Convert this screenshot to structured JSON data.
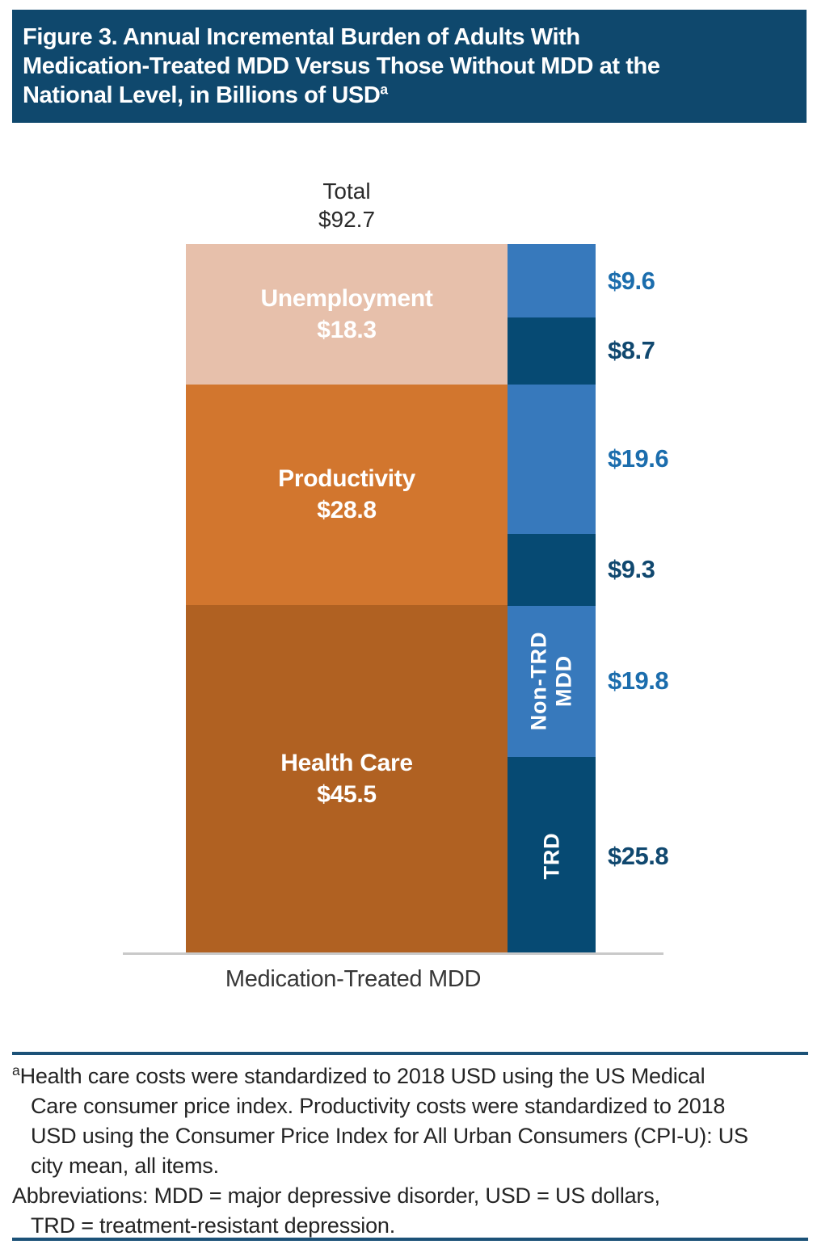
{
  "header": {
    "bg_color": "#0f486d",
    "title_lines": [
      "Figure 3. Annual Incremental Burden of Adults With",
      "Medication-Treated MDD Versus Those Without MDD at the",
      "National Level, in Billions of USD"
    ],
    "title_superscript": "a"
  },
  "chart_data": {
    "type": "bar",
    "stacked": true,
    "orientation": "vertical",
    "unit": "billions of USD",
    "categories": [
      "Medication-Treated MDD"
    ],
    "x_category": "Medication-Treated MDD",
    "total_label": "Total",
    "total_value": 92.7,
    "total_value_label": "$92.7",
    "axis_line_color": "#c9c9c9",
    "main_segments": [
      {
        "name": "Unemployment",
        "label": "Unemployment",
        "value": 18.3,
        "value_label": "$18.3",
        "color": "#e7c0ab"
      },
      {
        "name": "Productivity",
        "label": "Productivity",
        "value": 28.8,
        "value_label": "$28.8",
        "color": "#d2762e"
      },
      {
        "name": "Health Care",
        "label": "Health Care",
        "value": 45.5,
        "value_label": "$45.5",
        "color": "#b06122"
      }
    ],
    "split_segments": [
      {
        "group": "Unemployment",
        "category": "Non-TRD MDD",
        "value": 9.6,
        "value_label": "$9.6",
        "color": "#3779bc",
        "label_color": "#1b6dad",
        "rotated_label_lines": []
      },
      {
        "group": "Unemployment",
        "category": "TRD",
        "value": 8.7,
        "value_label": "$8.7",
        "color": "#064a73",
        "label_color": "#10486f",
        "rotated_label_lines": []
      },
      {
        "group": "Productivity",
        "category": "Non-TRD MDD",
        "value": 19.6,
        "value_label": "$19.6",
        "color": "#3779bc",
        "label_color": "#1b6dad",
        "rotated_label_lines": []
      },
      {
        "group": "Productivity",
        "category": "TRD",
        "value": 9.3,
        "value_label": "$9.3",
        "color": "#064a73",
        "label_color": "#10486f",
        "rotated_label_lines": []
      },
      {
        "group": "Health Care",
        "category": "Non-TRD MDD",
        "value": 19.8,
        "value_label": "$19.8",
        "color": "#3779bc",
        "label_color": "#1b6dad",
        "rotated_label_lines": [
          "Non-TRD",
          "MDD"
        ]
      },
      {
        "group": "Health Care",
        "category": "TRD",
        "value": 25.8,
        "value_label": "$25.8",
        "color": "#064a73",
        "label_color": "#10486f",
        "rotated_label_lines": [
          "TRD"
        ]
      }
    ]
  },
  "footnote": {
    "superscript": "a",
    "lines": [
      "Health care costs were standardized to 2018 USD using the US Medical",
      "Care consumer price index. Productivity costs were standardized to 2018",
      "USD using the Consumer Price Index for All Urban Consumers (CPI-U): US",
      "city mean, all items.",
      "Abbreviations: MDD = major depressive disorder, USD = US dollars,",
      "TRD = treatment-resistant depression."
    ],
    "rule_color": "#1c5278"
  }
}
